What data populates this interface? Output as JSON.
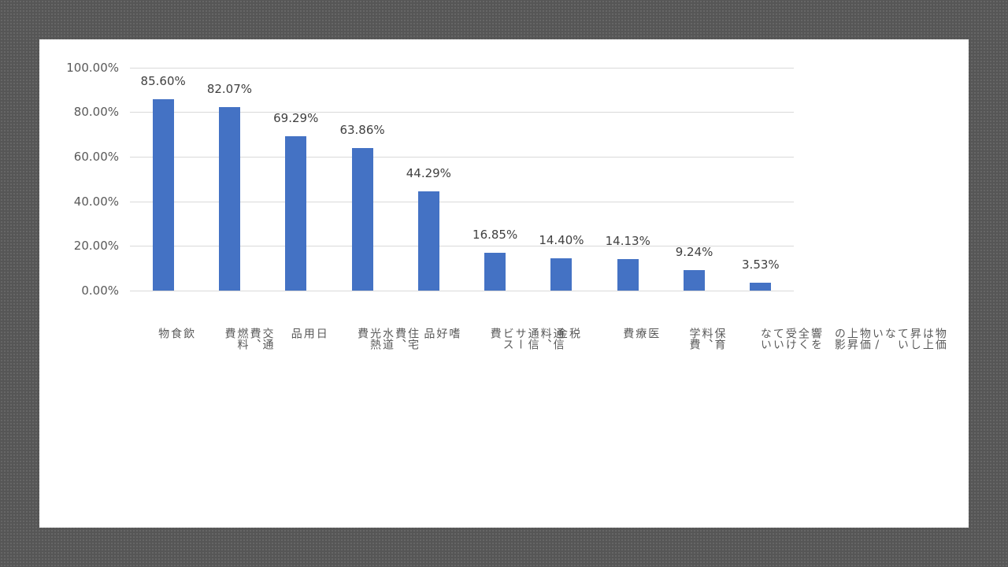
{
  "chart_data": {
    "type": "bar",
    "title": "",
    "xlabel": "",
    "ylabel": "",
    "ylim": [
      0,
      1.0
    ],
    "grid": true,
    "legend": null,
    "y_ticks": [
      "0.00%",
      "20.00%",
      "40.00%",
      "60.00%",
      "80.00%",
      "100.00%"
    ],
    "categories": [
      "飲食物",
      "交通費、燃料費",
      "日用品",
      "住宅費、水道光熱費",
      "嗜好品",
      "通信料、通信サービス費",
      "税金",
      "医療費",
      "保育料、学費",
      "物価は上昇していない/物価上昇の影響を全く受けていない"
    ],
    "values": [
      0.856,
      0.8207,
      0.6929,
      0.6386,
      0.4429,
      0.1685,
      0.144,
      0.1413,
      0.0924,
      0.0353
    ],
    "data_labels": [
      "85.60%",
      "82.07%",
      "69.29%",
      "63.86%",
      "44.29%",
      "16.85%",
      "14.40%",
      "14.13%",
      "9.24%",
      "3.53%"
    ],
    "bar_color": "#4472c4"
  },
  "x_label_lines": [
    [
      "飲食物"
    ],
    [
      "交通費、燃料費"
    ],
    [
      "日用品"
    ],
    [
      "住宅費、水道光熱費"
    ],
    [
      "嗜好品"
    ],
    [
      "通信料、通信サービス費"
    ],
    [
      "税金"
    ],
    [
      "医療費"
    ],
    [
      "保育料、学費"
    ],
    [
      "物価は上昇していない/物価上昇の影",
      "響を全く受けていない"
    ]
  ]
}
